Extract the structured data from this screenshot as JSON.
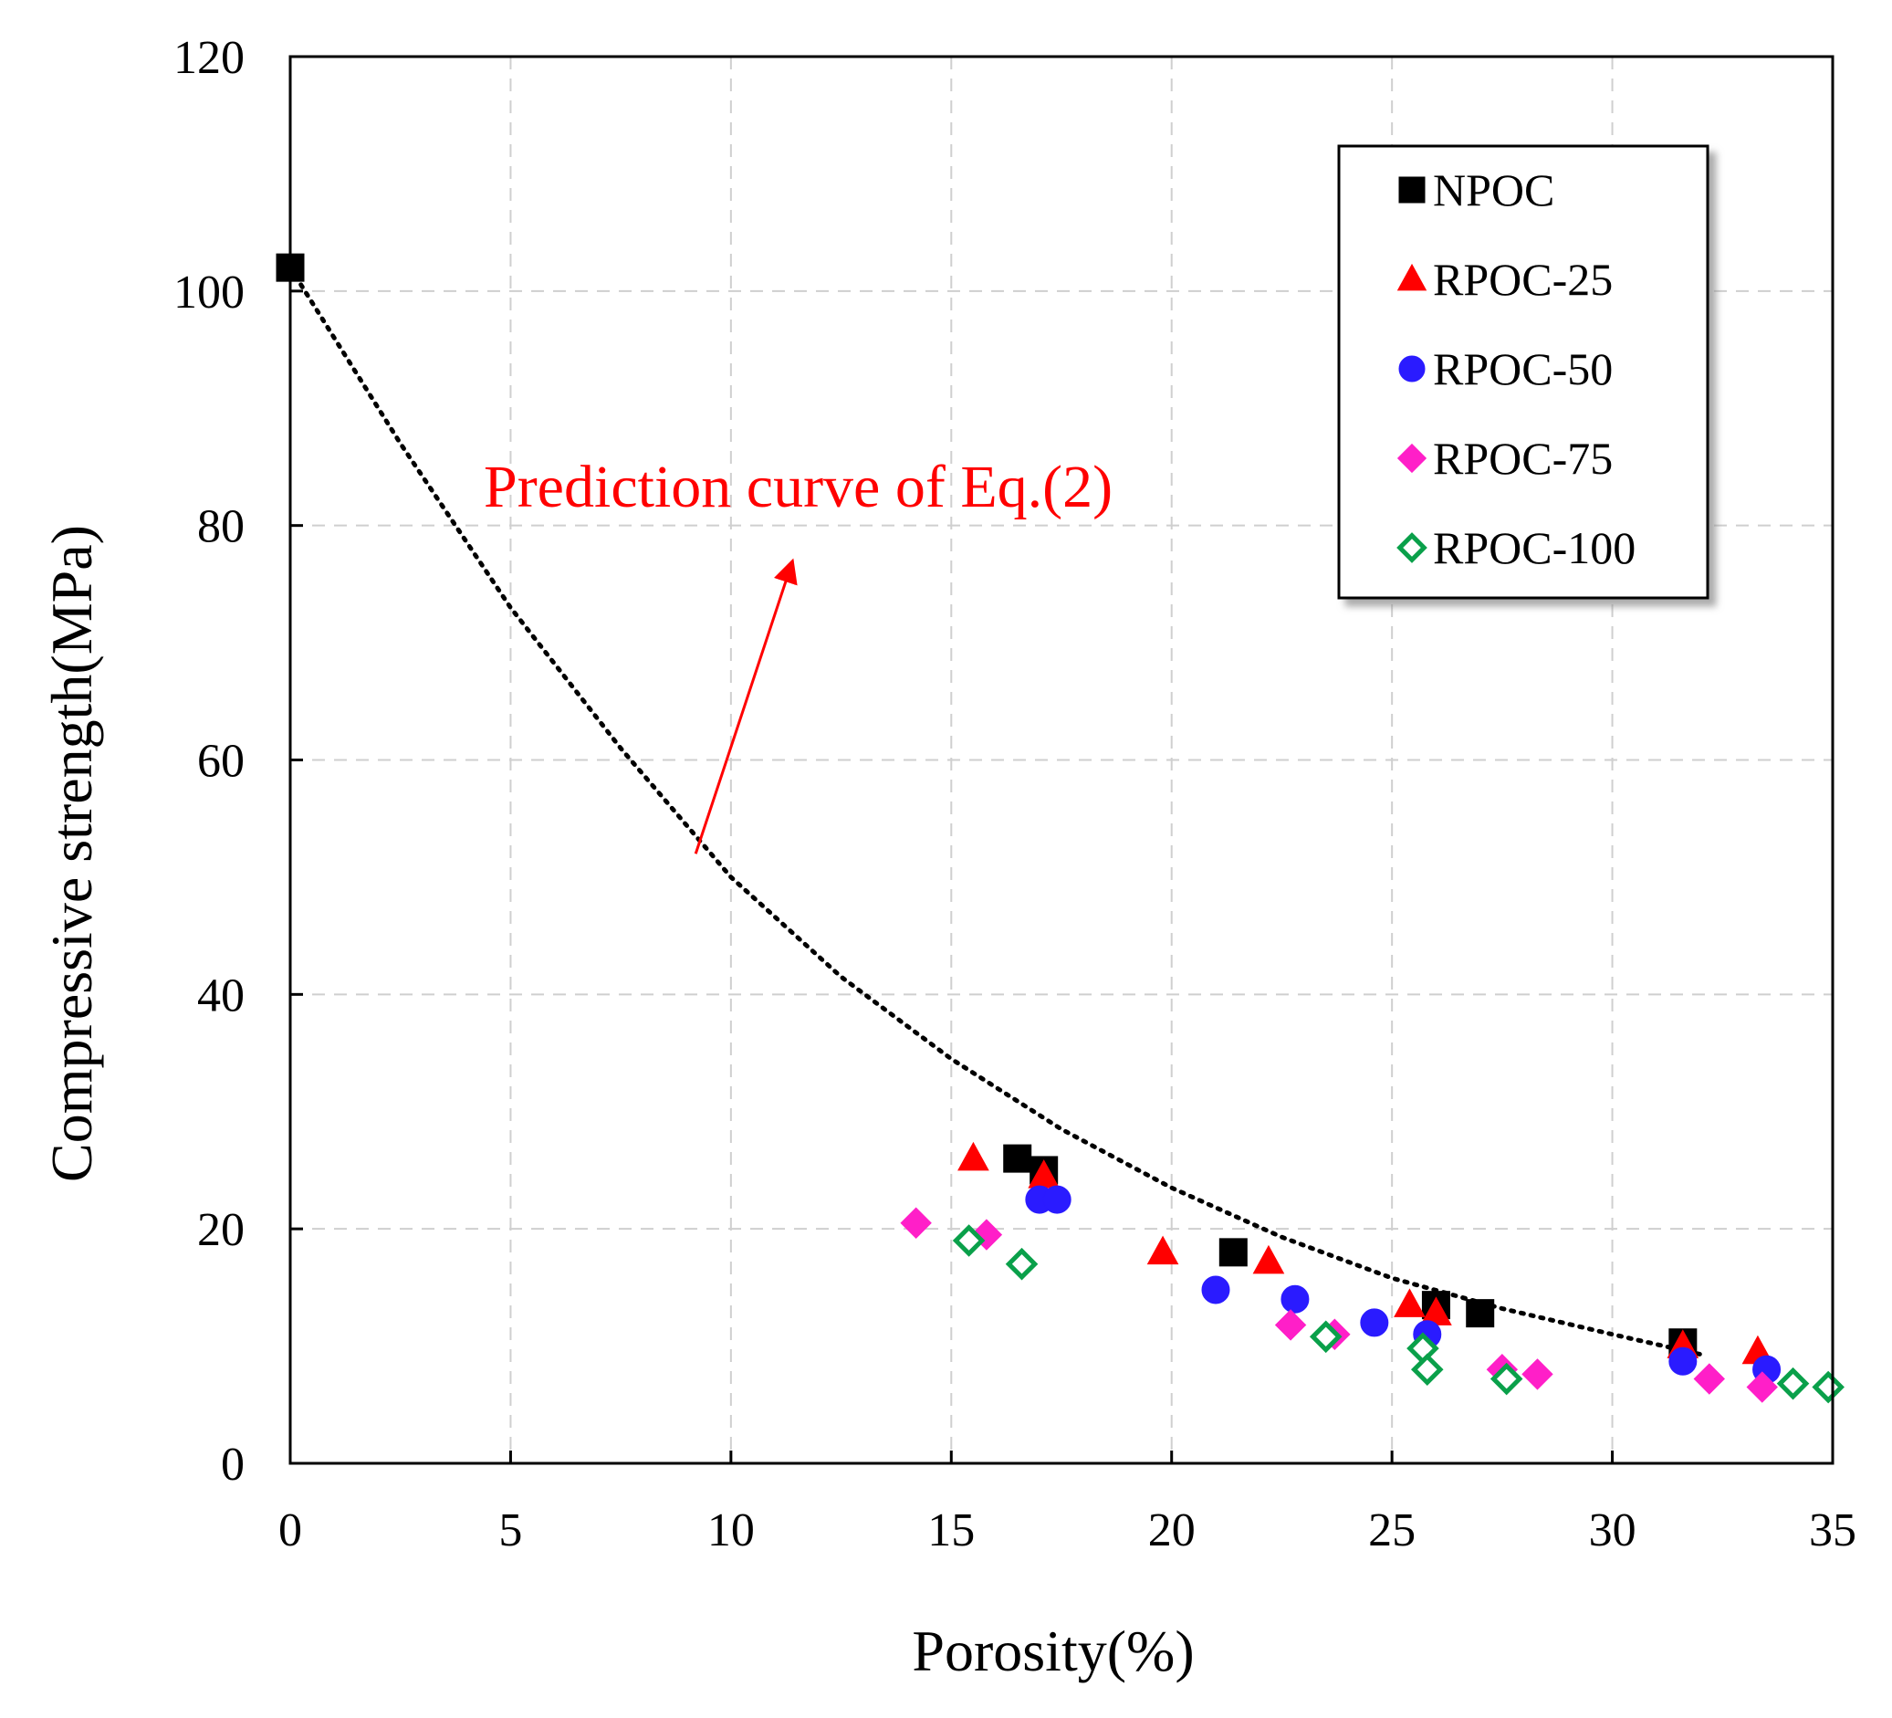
{
  "chart_data": {
    "type": "scatter",
    "title": "",
    "xlabel": "Porosity(%)",
    "ylabel": "Compressive strength(MPa)",
    "xlim": [
      0,
      35
    ],
    "ylim": [
      0,
      120
    ],
    "xticks": [
      0,
      5,
      10,
      15,
      20,
      25,
      30,
      35
    ],
    "yticks": [
      0,
      20,
      40,
      60,
      80,
      100,
      120
    ],
    "grid": true,
    "legend_position": "top-right",
    "series": [
      {
        "name": "NPOC",
        "marker": "square",
        "filled": true,
        "color": "#000000",
        "points": [
          [
            0,
            102
          ],
          [
            16.5,
            26
          ],
          [
            17.1,
            25
          ],
          [
            21.4,
            18
          ],
          [
            26,
            13.5
          ],
          [
            27,
            12.8
          ],
          [
            31.6,
            10.3
          ]
        ]
      },
      {
        "name": "RPOC-25",
        "marker": "triangle",
        "filled": true,
        "color": "#ff0000",
        "points": [
          [
            15.5,
            26
          ],
          [
            17.1,
            24.5
          ],
          [
            19.8,
            18
          ],
          [
            22.2,
            17.2
          ],
          [
            25.4,
            13.5
          ],
          [
            26,
            12.8
          ],
          [
            31.6,
            10
          ],
          [
            33.3,
            9.5
          ]
        ]
      },
      {
        "name": "RPOC-50",
        "marker": "circle",
        "filled": true,
        "color": "#2a1bff",
        "points": [
          [
            17,
            22.5
          ],
          [
            17.4,
            22.5
          ],
          [
            21,
            14.8
          ],
          [
            22.8,
            14
          ],
          [
            24.6,
            12
          ],
          [
            25.8,
            11
          ],
          [
            31.6,
            8.7
          ],
          [
            33.5,
            8
          ]
        ]
      },
      {
        "name": "RPOC-75",
        "marker": "diamond",
        "filled": true,
        "color": "#ff1fc8",
        "points": [
          [
            14.2,
            20.5
          ],
          [
            15.8,
            19.5
          ],
          [
            22.7,
            11.8
          ],
          [
            23.7,
            11
          ],
          [
            27.5,
            8
          ],
          [
            28.3,
            7.6
          ],
          [
            32.2,
            7.2
          ],
          [
            33.4,
            6.5
          ]
        ]
      },
      {
        "name": "RPOC-100",
        "marker": "diamond",
        "filled": false,
        "color": "#0aa04a",
        "points": [
          [
            15.4,
            19
          ],
          [
            16.6,
            17
          ],
          [
            23.5,
            10.8
          ],
          [
            25.7,
            9.8
          ],
          [
            25.8,
            8
          ],
          [
            27.6,
            7.2
          ],
          [
            34.1,
            6.8
          ],
          [
            34.9,
            6.5
          ]
        ]
      }
    ],
    "fit_curve": {
      "label": "Prediction curve of Eq.(2)",
      "style": "dotted",
      "color": "#000000",
      "points": [
        [
          0,
          102
        ],
        [
          2.5,
          87
        ],
        [
          5,
          73
        ],
        [
          7.5,
          61
        ],
        [
          10,
          50
        ],
        [
          12.5,
          41.5
        ],
        [
          15,
          34.5
        ],
        [
          17.5,
          28.5
        ],
        [
          20,
          23.5
        ],
        [
          22.5,
          19.3
        ],
        [
          25,
          15.8
        ],
        [
          27.5,
          13.2
        ],
        [
          30,
          11
        ],
        [
          32,
          9.3
        ]
      ]
    },
    "annotations": [
      {
        "text": "Prediction curve of Eq.(2)",
        "color": "#ff0000",
        "arrow": {
          "from": [
            9.2,
            52
          ],
          "to": [
            11.4,
            77
          ]
        }
      }
    ]
  }
}
